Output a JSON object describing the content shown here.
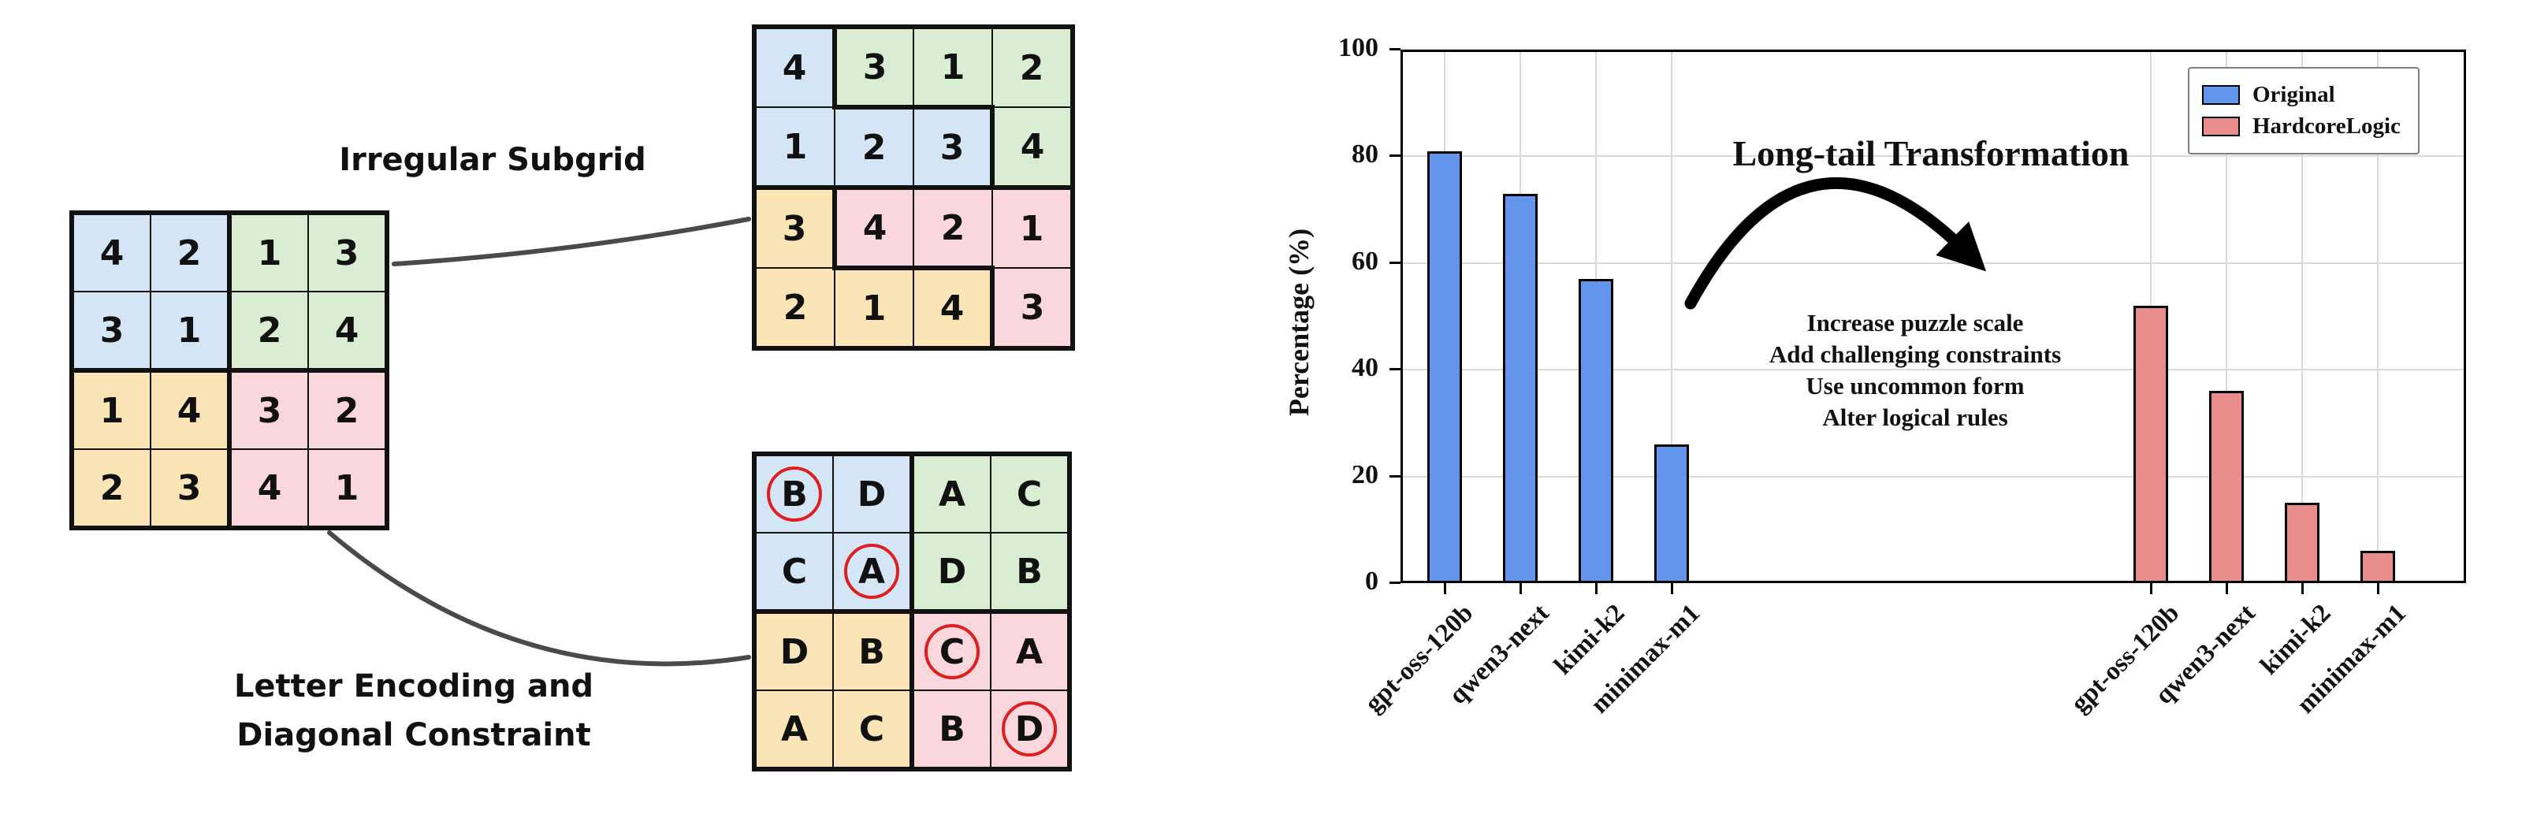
{
  "figure": {
    "left_panel": {
      "irregular_label": "Irregular Subgrid",
      "letter_label_line1": "Letter Encoding and",
      "letter_label_line2": "Diagonal Constraint"
    },
    "palette": {
      "blue": "#D4E6F6",
      "green": "#D9EDD3",
      "yellow": "#FBE5B6",
      "pink": "#F9D7DC",
      "circle_red": "#DD1F1F"
    },
    "grids": {
      "source": {
        "values": [
          [
            "4",
            "2",
            "1",
            "3"
          ],
          [
            "3",
            "1",
            "2",
            "4"
          ],
          [
            "1",
            "4",
            "3",
            "2"
          ],
          [
            "2",
            "3",
            "4",
            "1"
          ]
        ],
        "regions": [
          [
            "blue",
            "blue",
            "green",
            "green"
          ],
          [
            "blue",
            "blue",
            "green",
            "green"
          ],
          [
            "yellow",
            "yellow",
            "pink",
            "pink"
          ],
          [
            "yellow",
            "yellow",
            "pink",
            "pink"
          ]
        ]
      },
      "irregular": {
        "values": [
          [
            "4",
            "3",
            "1",
            "2"
          ],
          [
            "1",
            "2",
            "3",
            "4"
          ],
          [
            "3",
            "4",
            "2",
            "1"
          ],
          [
            "2",
            "1",
            "4",
            "3"
          ]
        ],
        "regions": [
          [
            "blue",
            "green",
            "green",
            "green"
          ],
          [
            "blue",
            "blue",
            "blue",
            "green"
          ],
          [
            "yellow",
            "pink",
            "pink",
            "pink"
          ],
          [
            "yellow",
            "yellow",
            "yellow",
            "pink"
          ]
        ]
      },
      "letters": {
        "values": [
          [
            "B",
            "D",
            "A",
            "C"
          ],
          [
            "C",
            "A",
            "D",
            "B"
          ],
          [
            "D",
            "B",
            "C",
            "A"
          ],
          [
            "A",
            "C",
            "B",
            "D"
          ]
        ],
        "regions": [
          [
            "blue",
            "blue",
            "green",
            "green"
          ],
          [
            "blue",
            "blue",
            "green",
            "green"
          ],
          [
            "yellow",
            "yellow",
            "pink",
            "pink"
          ],
          [
            "yellow",
            "yellow",
            "pink",
            "pink"
          ]
        ],
        "circled": [
          [
            0,
            0
          ],
          [
            1,
            1
          ],
          [
            2,
            2
          ],
          [
            3,
            3
          ]
        ]
      }
    }
  },
  "chart_data": {
    "type": "bar",
    "title": "",
    "xlabel": "",
    "ylabel": "Percentage (%)",
    "ylim": [
      0,
      100
    ],
    "yticks": [
      0,
      20,
      40,
      60,
      80,
      100
    ],
    "grid": true,
    "legend_position": "upper right",
    "categories": [
      "gpt-oss-120b",
      "qwen3-next",
      "kimi-k2",
      "minimax-m1"
    ],
    "series": [
      {
        "name": "Original",
        "color": "#6495ED",
        "values": [
          81,
          73,
          57,
          26
        ]
      },
      {
        "name": "HardcoreLogic",
        "color": "#E98C8C",
        "values": [
          52,
          36,
          15,
          6
        ]
      }
    ],
    "annotations": {
      "arrow_label": "Long-tail Transformation",
      "notes": [
        "Increase puzzle scale",
        "Add challenging constraints",
        "Use uncommon form",
        "Alter logical rules"
      ]
    }
  }
}
